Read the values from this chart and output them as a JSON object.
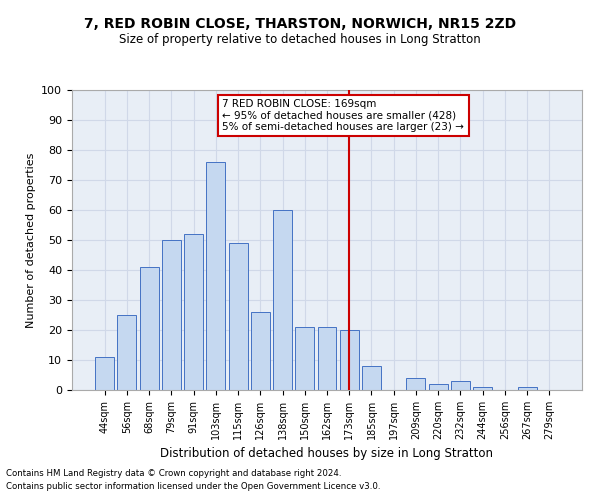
{
  "title": "7, RED ROBIN CLOSE, THARSTON, NORWICH, NR15 2ZD",
  "subtitle": "Size of property relative to detached houses in Long Stratton",
  "xlabel": "Distribution of detached houses by size in Long Stratton",
  "ylabel": "Number of detached properties",
  "footer_line1": "Contains HM Land Registry data © Crown copyright and database right 2024.",
  "footer_line2": "Contains public sector information licensed under the Open Government Licence v3.0.",
  "bin_labels": [
    "44sqm",
    "56sqm",
    "68sqm",
    "79sqm",
    "91sqm",
    "103sqm",
    "115sqm",
    "126sqm",
    "138sqm",
    "150sqm",
    "162sqm",
    "173sqm",
    "185sqm",
    "197sqm",
    "209sqm",
    "220sqm",
    "232sqm",
    "244sqm",
    "256sqm",
    "267sqm",
    "279sqm"
  ],
  "bar_heights": [
    11,
    25,
    41,
    50,
    52,
    76,
    49,
    26,
    60,
    21,
    21,
    20,
    8,
    0,
    4,
    2,
    3,
    1,
    0,
    1,
    0
  ],
  "bar_color": "#c5d8f0",
  "bar_edge_color": "#4472c4",
  "grid_color": "#d0d8e8",
  "plot_bg_color": "#e8eef6",
  "fig_bg_color": "#ffffff",
  "property_label": "7 RED ROBIN CLOSE: 169sqm",
  "annotation_line1": "← 95% of detached houses are smaller (428)",
  "annotation_line2": "5% of semi-detached houses are larger (23) →",
  "red_line_x_label": "173sqm",
  "annotation_box_color": "#ffffff",
  "annotation_border_color": "#cc0000",
  "red_line_color": "#cc0000",
  "ylim": [
    0,
    100
  ],
  "yticks": [
    0,
    10,
    20,
    30,
    40,
    50,
    60,
    70,
    80,
    90,
    100
  ]
}
